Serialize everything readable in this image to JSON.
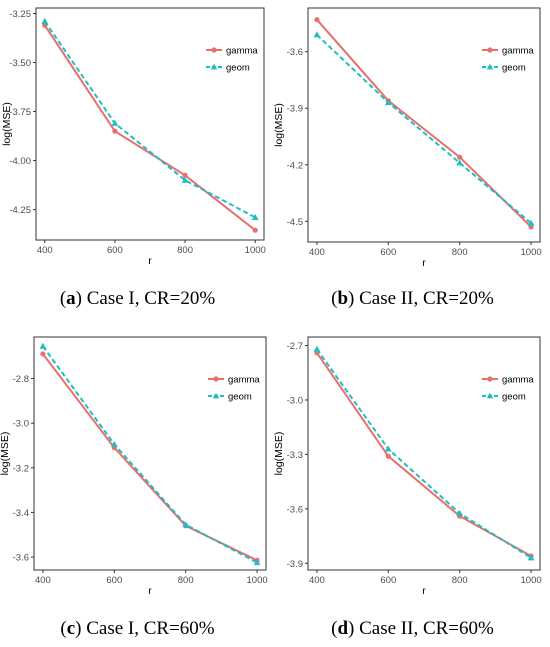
{
  "figure": {
    "captions": [
      {
        "letter": "a",
        "text": " Case I, CR=20%"
      },
      {
        "letter": "b",
        "text": " Case II, CR=20%"
      },
      {
        "letter": "c",
        "text": " Case I, CR=60%"
      },
      {
        "letter": "d",
        "text": " Case II, CR=60%"
      }
    ]
  },
  "colors": {
    "gamma": "#E8706A",
    "geom": "#1DBEC4"
  },
  "chart_data": [
    {
      "type": "line",
      "xlabel": "r",
      "ylabel": "log(MSE)",
      "x": [
        400,
        600,
        800,
        1000
      ],
      "xticks": [
        400,
        600,
        800,
        1000
      ],
      "xlim": [
        375,
        1025
      ],
      "yticks": [
        "-3.25",
        "-3.50",
        "-3.75",
        "-4.00",
        "-4.25"
      ],
      "ylim": [
        -4.405,
        -3.222
      ],
      "legend_position": "top-right",
      "series": [
        {
          "name": "gamma",
          "marker": "circle",
          "linestyle": "solid",
          "values": [
            -3.31,
            -3.85,
            -4.075,
            -4.355
          ]
        },
        {
          "name": "geom",
          "marker": "triangle",
          "linestyle": "dashed",
          "values": [
            -3.29,
            -3.81,
            -4.1,
            -4.29
          ]
        }
      ]
    },
    {
      "type": "line",
      "xlabel": "r",
      "ylabel": "log(MSE)",
      "x": [
        400,
        600,
        800,
        1000
      ],
      "xticks": [
        400,
        600,
        800,
        1000
      ],
      "xlim": [
        375,
        1025
      ],
      "yticks": [
        "-3.6",
        "-3.9",
        "-4.2",
        "-4.5"
      ],
      "ylim": [
        -4.61,
        -3.368
      ],
      "legend_position": "top-right",
      "series": [
        {
          "name": "gamma",
          "marker": "circle",
          "linestyle": "solid",
          "values": [
            -3.43,
            -3.86,
            -4.16,
            -4.53
          ]
        },
        {
          "name": "geom",
          "marker": "triangle",
          "linestyle": "dashed",
          "values": [
            -3.51,
            -3.87,
            -4.19,
            -4.51
          ]
        }
      ]
    },
    {
      "type": "line",
      "xlabel": "r",
      "ylabel": "log(MSE)",
      "x": [
        400,
        600,
        800,
        1000
      ],
      "xticks": [
        400,
        600,
        800,
        1000
      ],
      "xlim": [
        375,
        1025
      ],
      "yticks": [
        "-2.8",
        "-3.0",
        "-3.2",
        "-3.4",
        "-3.6"
      ],
      "ylim": [
        -3.658,
        -2.614
      ],
      "legend_position": "top-right",
      "series": [
        {
          "name": "gamma",
          "marker": "circle",
          "linestyle": "solid",
          "values": [
            -2.69,
            -3.11,
            -3.46,
            -3.615
          ]
        },
        {
          "name": "geom",
          "marker": "triangle",
          "linestyle": "dashed",
          "values": [
            -2.655,
            -3.095,
            -3.455,
            -3.625
          ]
        }
      ]
    },
    {
      "type": "line",
      "xlabel": "r",
      "ylabel": "log(MSE)",
      "x": [
        400,
        600,
        800,
        1000
      ],
      "xticks": [
        400,
        600,
        800,
        1000
      ],
      "xlim": [
        375,
        1025
      ],
      "yticks": [
        "-2.7",
        "-3.0",
        "-3.3",
        "-3.6",
        "-3.9"
      ],
      "ylim": [
        -3.937,
        -2.653
      ],
      "legend_position": "top-right",
      "series": [
        {
          "name": "gamma",
          "marker": "circle",
          "linestyle": "solid",
          "values": [
            -2.74,
            -3.31,
            -3.64,
            -3.86
          ]
        },
        {
          "name": "geom",
          "marker": "triangle",
          "linestyle": "dashed",
          "values": [
            -2.72,
            -3.27,
            -3.625,
            -3.87
          ]
        }
      ]
    }
  ]
}
